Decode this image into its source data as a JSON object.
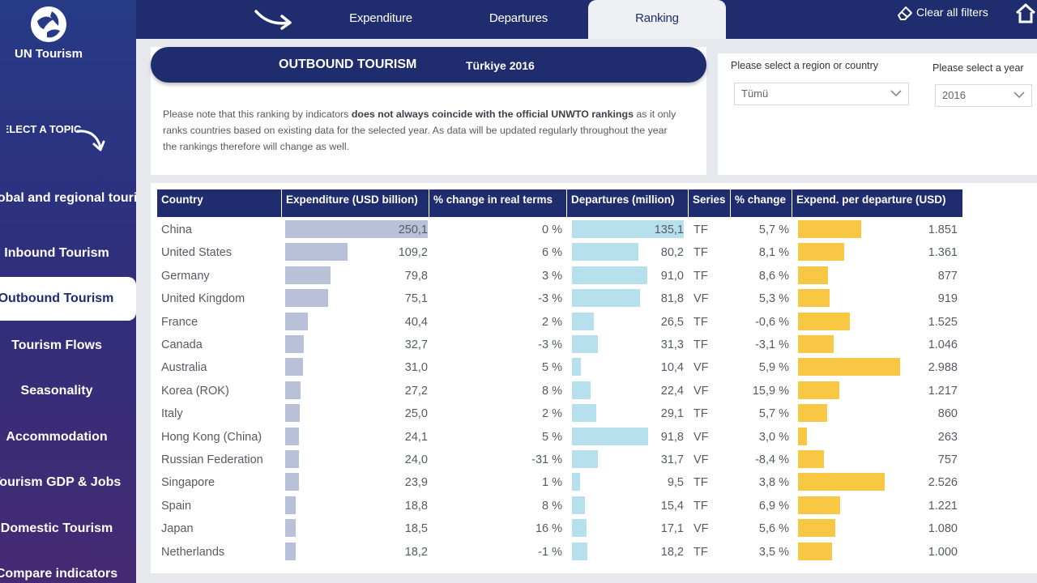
{
  "header": {
    "tabs": [
      {
        "label": "Expenditure",
        "active": false
      },
      {
        "label": "Departures",
        "active": false
      },
      {
        "label": "Ranking",
        "active": true
      }
    ],
    "clear_filters_label": "Clear all filters"
  },
  "sidebar": {
    "logo_text": "UN Tourism",
    "select_topic_label": "SELECT A TOPIC",
    "items": [
      {
        "label": "Global and regional tourism results",
        "active": false
      },
      {
        "label": "Inbound Tourism",
        "active": false
      },
      {
        "label": "Outbound Tourism",
        "active": true
      },
      {
        "label": "Tourism Flows",
        "active": false
      },
      {
        "label": "Seasonality",
        "active": false
      },
      {
        "label": "Accommodation",
        "active": false
      },
      {
        "label": "Tourism GDP & Jobs",
        "active": false
      },
      {
        "label": "Domestic Tourism",
        "active": false
      },
      {
        "label": "Compare indicators",
        "active": false
      }
    ]
  },
  "title": {
    "main": "OUTBOUND TOURISM",
    "sub": "Türkiye 2016"
  },
  "note": {
    "part1": "Please note that this ranking by indicators ",
    "bold": "does not always coincide with the official UNWTO rankings",
    "part2": " as it only ranks countries based on existing data for the selected year. As data will be updated regularly throughout the year the rankings therefore will change as well."
  },
  "filters": {
    "region_label": "Please select a region or country",
    "region_value": "Tümü",
    "year_label": "Please select a year",
    "year_value": "2016"
  },
  "table": {
    "columns": [
      "Country",
      "Expenditure (USD billion)",
      "% change in real terms",
      "Departures (million)",
      "Series",
      "% change",
      "Expend. per departure (USD)"
    ],
    "max_expenditure": 250.1,
    "max_departures": 135.1,
    "max_epd": 2988,
    "rows": [
      {
        "country": "China",
        "expenditure": "250,1",
        "exp": 250.1,
        "exp_change": "0 %",
        "departures": "135,1",
        "dep": 135.1,
        "series": "TF",
        "dep_change": "5,7 %",
        "epd_label": "1.851",
        "epd": 1851
      },
      {
        "country": "United States",
        "expenditure": "109,2",
        "exp": 109.2,
        "exp_change": "6 %",
        "departures": "80,2",
        "dep": 80.2,
        "series": "TF",
        "dep_change": "8,1 %",
        "epd_label": "1.361",
        "epd": 1361
      },
      {
        "country": "Germany",
        "expenditure": "79,8",
        "exp": 79.8,
        "exp_change": "3 %",
        "departures": "91,0",
        "dep": 91.0,
        "series": "TF",
        "dep_change": "8,6 %",
        "epd_label": "877",
        "epd": 877
      },
      {
        "country": "United Kingdom",
        "expenditure": "75,1",
        "exp": 75.1,
        "exp_change": "-3 %",
        "departures": "81,8",
        "dep": 81.8,
        "series": "VF",
        "dep_change": "5,3 %",
        "epd_label": "919",
        "epd": 919
      },
      {
        "country": "France",
        "expenditure": "40,4",
        "exp": 40.4,
        "exp_change": "2 %",
        "departures": "26,5",
        "dep": 26.5,
        "series": "TF",
        "dep_change": "-0,6 %",
        "epd_label": "1.525",
        "epd": 1525
      },
      {
        "country": "Canada",
        "expenditure": "32,7",
        "exp": 32.7,
        "exp_change": "-3 %",
        "departures": "31,3",
        "dep": 31.3,
        "series": "TF",
        "dep_change": "-3,1 %",
        "epd_label": "1.046",
        "epd": 1046
      },
      {
        "country": "Australia",
        "expenditure": "31,0",
        "exp": 31.0,
        "exp_change": "5 %",
        "departures": "10,4",
        "dep": 10.4,
        "series": "VF",
        "dep_change": "5,9 %",
        "epd_label": "2.988",
        "epd": 2988
      },
      {
        "country": "Korea (ROK)",
        "expenditure": "27,2",
        "exp": 27.2,
        "exp_change": "8 %",
        "departures": "22,4",
        "dep": 22.4,
        "series": "VF",
        "dep_change": "15,9 %",
        "epd_label": "1.217",
        "epd": 1217
      },
      {
        "country": "Italy",
        "expenditure": "25,0",
        "exp": 25.0,
        "exp_change": "2 %",
        "departures": "29,1",
        "dep": 29.1,
        "series": "TF",
        "dep_change": "5,7 %",
        "epd_label": "860",
        "epd": 860
      },
      {
        "country": "Hong Kong (China)",
        "expenditure": "24,1",
        "exp": 24.1,
        "exp_change": "5 %",
        "departures": "91,8",
        "dep": 91.8,
        "series": "VF",
        "dep_change": "3,0 %",
        "epd_label": "263",
        "epd": 263
      },
      {
        "country": "Russian Federation",
        "expenditure": "24,0",
        "exp": 24.0,
        "exp_change": "-31 %",
        "departures": "31,7",
        "dep": 31.7,
        "series": "VF",
        "dep_change": "-8,4 %",
        "epd_label": "757",
        "epd": 757
      },
      {
        "country": "Singapore",
        "expenditure": "23,9",
        "exp": 23.9,
        "exp_change": "1 %",
        "departures": "9,5",
        "dep": 9.5,
        "series": "TF",
        "dep_change": "3,8 %",
        "epd_label": "2.526",
        "epd": 2526
      },
      {
        "country": "Spain",
        "expenditure": "18,8",
        "exp": 18.8,
        "exp_change": "8 %",
        "departures": "15,4",
        "dep": 15.4,
        "series": "TF",
        "dep_change": "6,9 %",
        "epd_label": "1.221",
        "epd": 1221
      },
      {
        "country": "Japan",
        "expenditure": "18,5",
        "exp": 18.5,
        "exp_change": "16 %",
        "departures": "17,1",
        "dep": 17.1,
        "series": "VF",
        "dep_change": "5,6 %",
        "epd_label": "1.080",
        "epd": 1080
      },
      {
        "country": "Netherlands",
        "expenditure": "18,2",
        "exp": 18.2,
        "exp_change": "-1 %",
        "departures": "18,2",
        "dep": 18.2,
        "series": "TF",
        "dep_change": "3,5 %",
        "epd_label": "1.000",
        "epd": 1000
      }
    ]
  },
  "colors": {
    "navy": "#1f2d6e",
    "expenditure_bar": "#b9c1d8",
    "departures_bar": "#b6e0ec",
    "epd_bar": "#f8c845"
  }
}
